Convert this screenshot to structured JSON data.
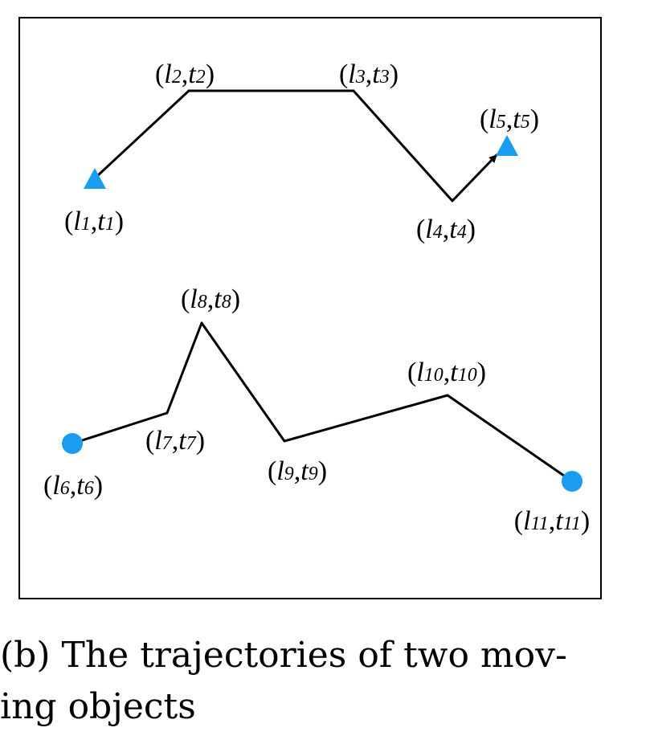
{
  "colors": {
    "marker": "#1a9cf0",
    "line": "#000000",
    "frame": "#000000"
  },
  "trajectories": [
    {
      "start_marker": "triangle",
      "end_marker": "triangle",
      "points": [
        {
          "l": "1",
          "t": "1"
        },
        {
          "l": "2",
          "t": "2"
        },
        {
          "l": "3",
          "t": "3"
        },
        {
          "l": "4",
          "t": "4"
        },
        {
          "l": "5",
          "t": "5"
        }
      ]
    },
    {
      "start_marker": "circle",
      "end_marker": "circle",
      "points": [
        {
          "l": "6",
          "t": "6"
        },
        {
          "l": "7",
          "t": "7"
        },
        {
          "l": "8",
          "t": "8"
        },
        {
          "l": "9",
          "t": "9"
        },
        {
          "l": "10",
          "t": "10"
        },
        {
          "l": "11",
          "t": "11"
        }
      ]
    }
  ],
  "caption": {
    "line1": "(b)  The trajectories of two mov-",
    "line2": "ing objects"
  }
}
